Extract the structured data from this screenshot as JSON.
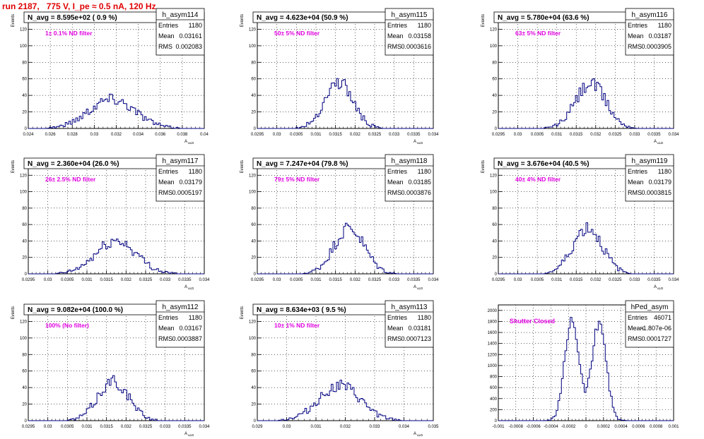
{
  "page": {
    "title": "run 2187,   775 V, I_pe ≈ 0.5 nA, 120 Hz"
  },
  "colors": {
    "histogram": "#000080",
    "annotation": "#e000e0",
    "title": "#e00000",
    "frame": "#000000",
    "grid": "#000000"
  },
  "chart_data": [
    {
      "type": "histogram",
      "name": "h_asym114",
      "stats": {
        "entries_label": "Entries",
        "entries": "1180",
        "mean_label": "Mean",
        "mean": "0.03161",
        "rms_label": "RMS",
        "rms": "0.002083"
      },
      "heading": "N_avg = 8.595e+02 ( 0.9 %)",
      "annotation": "1± 0.1% ND filter",
      "ylabel": "Events",
      "xlabel": "A",
      "xlabel_sub": "uLD",
      "xlim": [
        0.024,
        0.04
      ],
      "ylim": [
        0,
        140
      ],
      "yticks": [
        0,
        20,
        40,
        60,
        80,
        100,
        120
      ],
      "xticks": [
        "0.024",
        "0.026",
        "0.028",
        "0.03",
        "0.032",
        "0.034",
        "0.036",
        "0.038",
        "0.04"
      ],
      "grid": true,
      "peaks": [
        {
          "c": 0.0316,
          "s": 0.0021,
          "a": 36
        }
      ],
      "seed": 114
    },
    {
      "type": "histogram",
      "name": "h_asym115",
      "stats": {
        "entries_label": "Entries",
        "entries": "1180",
        "mean_label": "Mean",
        "mean": "0.03158",
        "rms_label": "RMS",
        "rms": "0.0003616"
      },
      "heading": "N_avg = 4.623e+04 (50.9 %)",
      "annotation": "50± 5% ND filter",
      "ylabel": "Events",
      "xlabel": "A",
      "xlabel_sub": "uLD",
      "xlim": [
        0.0295,
        0.034
      ],
      "ylim": [
        0,
        140
      ],
      "yticks": [
        0,
        20,
        40,
        60,
        80,
        100,
        120
      ],
      "xticks": [
        "0.0295",
        "0.03",
        "0.0305",
        "0.031",
        "0.0315",
        "0.032",
        "0.0325",
        "0.033",
        "0.0335",
        "0.034"
      ],
      "grid": true,
      "peaks": [
        {
          "c": 0.03158,
          "s": 0.00036,
          "a": 56
        }
      ],
      "seed": 115
    },
    {
      "type": "histogram",
      "name": "h_asym116",
      "stats": {
        "entries_label": "Entries",
        "entries": "1180",
        "mean_label": "Mean",
        "mean": "0.03187",
        "rms_label": "RMS",
        "rms": "0.0003905"
      },
      "heading": "N_avg = 5.780e+04 (63.6 %)",
      "annotation": "63± 5% ND filter",
      "ylabel": "Events",
      "xlabel": "A",
      "xlabel_sub": "uLD",
      "xlim": [
        0.0295,
        0.034
      ],
      "ylim": [
        0,
        140
      ],
      "yticks": [
        0,
        20,
        40,
        60,
        80,
        100,
        120
      ],
      "xticks": [
        "0.0295",
        "0.03",
        "0.0305",
        "0.031",
        "0.0315",
        "0.032",
        "0.0325",
        "0.033",
        "0.0335",
        "0.034"
      ],
      "grid": true,
      "peaks": [
        {
          "c": 0.03187,
          "s": 0.00039,
          "a": 54
        }
      ],
      "seed": 116
    },
    {
      "type": "histogram",
      "name": "h_asym117",
      "stats": {
        "entries_label": "Entries",
        "entries": "1180",
        "mean_label": "Mean",
        "mean": "0.03179",
        "rms_label": "RMS",
        "rms": "0.0005197"
      },
      "heading": "N_avg = 2.360e+04 (26.0 %)",
      "annotation": "26± 2.5% ND filter",
      "ylabel": "Events",
      "xlabel": "A",
      "xlabel_sub": "uLD",
      "xlim": [
        0.0295,
        0.034
      ],
      "ylim": [
        0,
        140
      ],
      "yticks": [
        0,
        20,
        40,
        60,
        80,
        100,
        120
      ],
      "xticks": [
        "0.0295",
        "0.03",
        "0.0305",
        "0.031",
        "0.0315",
        "0.032",
        "0.0325",
        "0.033",
        "0.0335",
        "0.034"
      ],
      "grid": true,
      "peaks": [
        {
          "c": 0.03175,
          "s": 0.00052,
          "a": 40
        }
      ],
      "seed": 117
    },
    {
      "type": "histogram",
      "name": "h_asym118",
      "stats": {
        "entries_label": "Entries",
        "entries": "1180",
        "mean_label": "Mean",
        "mean": "0.03185",
        "rms_label": "RMS",
        "rms": "0.0003876"
      },
      "heading": "N_avg = 7.247e+04 (79.8 %)",
      "annotation": "79± 5% ND filter",
      "ylabel": "Events",
      "xlabel": "A",
      "xlabel_sub": "uLD",
      "xlim": [
        0.0295,
        0.034
      ],
      "ylim": [
        0,
        140
      ],
      "yticks": [
        0,
        20,
        40,
        60,
        80,
        100,
        120
      ],
      "xticks": [
        "0.0295",
        "0.03",
        "0.0305",
        "0.031",
        "0.0315",
        "0.032",
        "0.0325",
        "0.033",
        "0.0335",
        "0.034"
      ],
      "grid": true,
      "peaks": [
        {
          "c": 0.03185,
          "s": 0.00039,
          "a": 56
        }
      ],
      "seed": 118
    },
    {
      "type": "histogram",
      "name": "h_asym119",
      "stats": {
        "entries_label": "Entries",
        "entries": "1180",
        "mean_label": "Mean",
        "mean": "0.03179",
        "rms_label": "RMS",
        "rms": "0.0003815"
      },
      "heading": "N_avg = 3.676e+04 (40.5 %)",
      "annotation": "40± 4% ND filter",
      "ylabel": "Events",
      "xlabel": "A",
      "xlabel_sub": "uLD",
      "xlim": [
        0.0295,
        0.034
      ],
      "ylim": [
        0,
        140
      ],
      "yticks": [
        0,
        20,
        40,
        60,
        80,
        100,
        120
      ],
      "xticks": [
        "0.0295",
        "0.03",
        "0.0305",
        "0.031",
        "0.0315",
        "0.032",
        "0.0325",
        "0.033",
        "0.0335",
        "0.034"
      ],
      "grid": true,
      "peaks": [
        {
          "c": 0.03179,
          "s": 0.00038,
          "a": 56
        }
      ],
      "seed": 119
    },
    {
      "type": "histogram",
      "name": "h_asym112",
      "stats": {
        "entries_label": "Entries",
        "entries": "1180",
        "mean_label": "Mean",
        "mean": "0.03167",
        "rms_label": "RMS",
        "rms": "0.0003887"
      },
      "heading": "N_avg = 9.082e+04 (100.0 %)",
      "annotation": "100% (No filter)",
      "ylabel": "Events",
      "xlabel": "A",
      "xlabel_sub": "uLD",
      "xlim": [
        0.0295,
        0.034
      ],
      "ylim": [
        0,
        140
      ],
      "yticks": [
        0,
        20,
        40,
        60,
        80,
        100,
        120
      ],
      "xticks": [
        "0.0295",
        "0.03",
        "0.0305",
        "0.031",
        "0.0315",
        "0.032",
        "0.0325",
        "0.033",
        "0.0335",
        "0.034"
      ],
      "grid": true,
      "peaks": [
        {
          "c": 0.03167,
          "s": 0.00039,
          "a": 48
        }
      ],
      "seed": 112
    },
    {
      "type": "histogram",
      "name": "h_asym113",
      "stats": {
        "entries_label": "Entries",
        "entries": "1180",
        "mean_label": "Mean",
        "mean": "0.03181",
        "rms_label": "RMS",
        "rms": "0.0007123"
      },
      "heading": "N_avg = 8.634e+03 ( 9.5 %)",
      "annotation": "10± 1% ND filter",
      "ylabel": "Events",
      "xlabel": "A",
      "xlabel_sub": "uLD",
      "xlim": [
        0.029,
        0.035
      ],
      "ylim": [
        0,
        140
      ],
      "yticks": [
        0,
        20,
        40,
        60,
        80,
        100,
        120
      ],
      "xticks": [
        "0.029",
        "0.03",
        "0.031",
        "0.032",
        "0.033",
        "0.034",
        "0.035"
      ],
      "grid": true,
      "peaks": [
        {
          "c": 0.0318,
          "s": 0.00071,
          "a": 42
        }
      ],
      "seed": 113
    },
    {
      "type": "histogram",
      "name": "hPed_asym",
      "stats": {
        "entries_label": "Entries",
        "entries": "46071",
        "mean_label": "Mean",
        "mean": "-1.807e-06",
        "rms_label": "RMS",
        "rms": "0.0001727"
      },
      "heading": "",
      "annotation": "Shutter Closed",
      "ylabel": "",
      "xlabel": "",
      "xlabel_sub": "",
      "xlim": [
        -0.001,
        0.001
      ],
      "ylim": [
        0,
        2100
      ],
      "yticks": [
        0,
        200,
        400,
        600,
        800,
        1000,
        1200,
        1400,
        1600,
        1800,
        2000
      ],
      "xticks": [
        "-0.001",
        "-0.0008",
        "-0.0006",
        "-0.0004",
        "-0.0002",
        "0",
        "0.0002",
        "0.0004",
        "0.0006",
        "0.0008",
        "0.001"
      ],
      "grid": true,
      "peaks": [
        {
          "c": -0.00016,
          "s": 8e-05,
          "a": 1850
        },
        {
          "c": 0.00015,
          "s": 8e-05,
          "a": 1820
        }
      ],
      "seed": 201
    }
  ]
}
